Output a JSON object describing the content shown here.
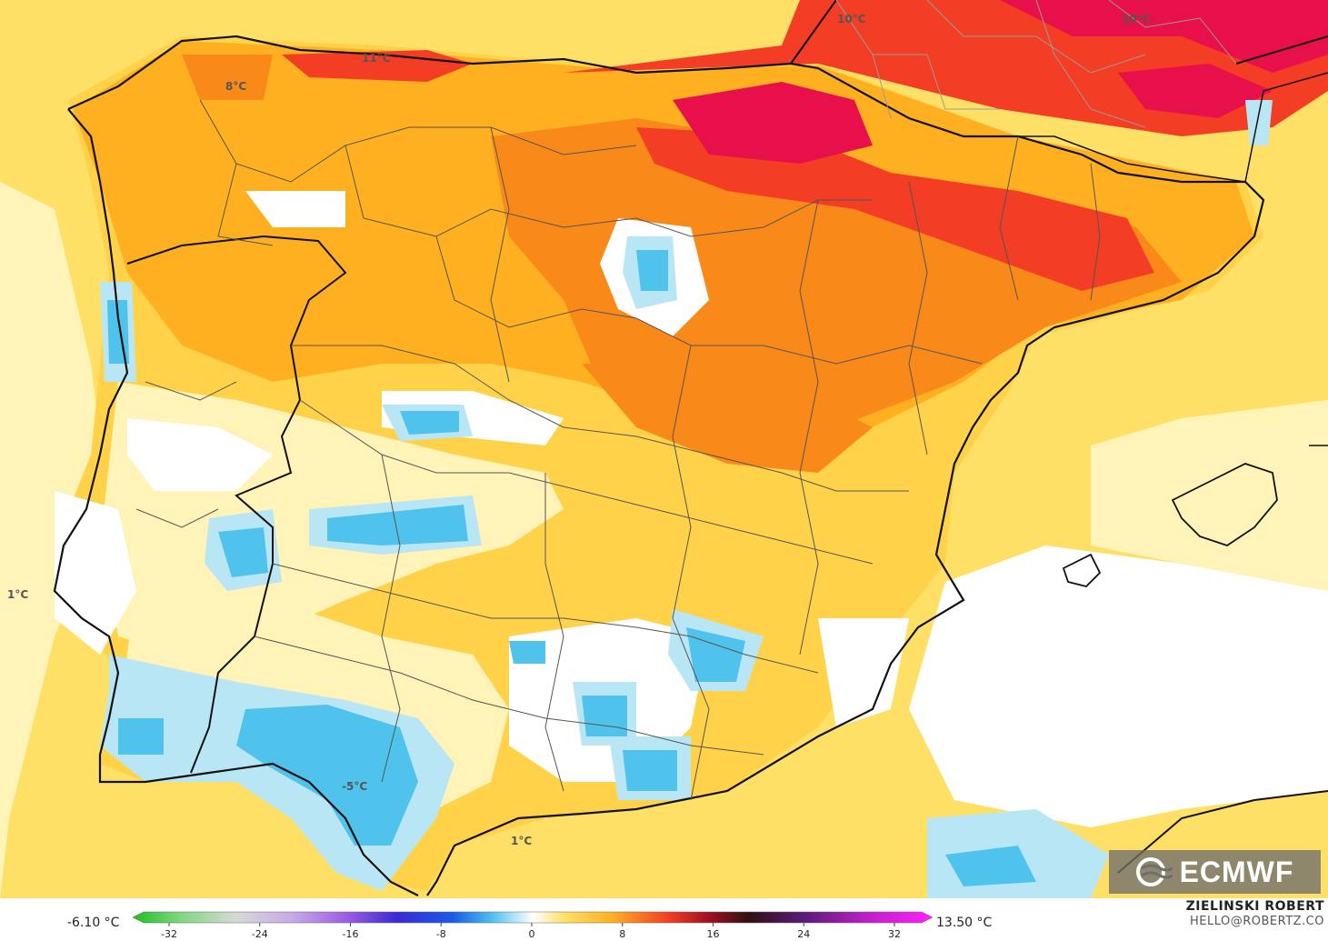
{
  "map": {
    "labels": [
      {
        "id": "label-11c",
        "text": "11°C"
      },
      {
        "id": "label-8c",
        "text": "8°C"
      },
      {
        "id": "label-10c-a",
        "text": "10°C"
      },
      {
        "id": "label-10c-b",
        "text": "10°C"
      },
      {
        "id": "label-1c-west",
        "text": "1°C"
      },
      {
        "id": "label-minus5c",
        "text": "-5°C"
      },
      {
        "id": "label-1c-south",
        "text": "1°C"
      }
    ]
  },
  "legend": {
    "min_value": "-6.10 °C",
    "max_value": "13.50 °C",
    "ticks": [
      "-32",
      "-24",
      "-16",
      "-8",
      "0",
      "8",
      "16",
      "24",
      "32"
    ]
  },
  "credit": {
    "name": "ZIELINSKI ROBERT",
    "email": "HELLO@ROBERTZ.CO"
  },
  "logo": {
    "text": "ECMWF"
  },
  "colors": {
    "sea_warm": "#ffe066",
    "orange": "#ffb020",
    "dark_orange": "#f98a1a",
    "red": "#f33d24",
    "magenta": "#e8104a",
    "pale": "#fff3b8",
    "light_blue": "#b8e6f5",
    "blue": "#4fc3ec"
  }
}
